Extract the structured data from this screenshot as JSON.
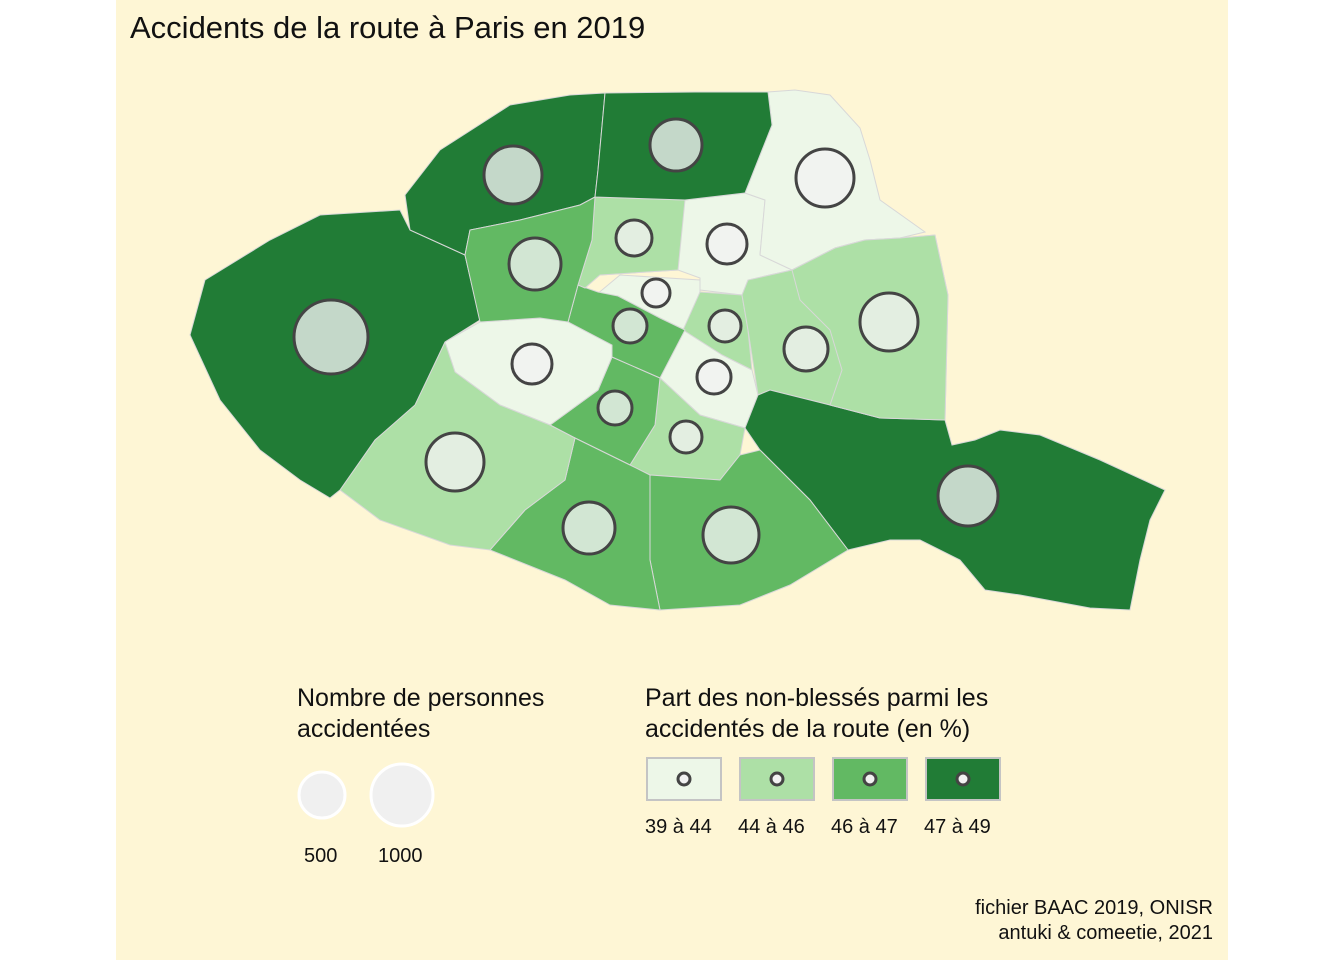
{
  "title": "Accidents de la route à Paris en 2019",
  "colors": {
    "panel_background": "#fef6d5",
    "class_39_44": "#edf7e8",
    "class_44_46": "#ade0a6",
    "class_46_47": "#62b963",
    "class_47_49": "#217c36",
    "bubble_fill": "#f2f2f2",
    "bubble_stroke": "#444444",
    "district_border": "#d8d8d8"
  },
  "size_legend": {
    "title": "Nombre de personnes\n accidentées",
    "items": [
      {
        "value": 500,
        "label": "500"
      },
      {
        "value": 1000,
        "label": "1000"
      }
    ]
  },
  "color_legend": {
    "title": "Part des non-blessés parmi les\naccidentés de la route (en %)",
    "classes": [
      {
        "label": "39 à 44",
        "color": "#edf7e8"
      },
      {
        "label": "44 à 46",
        "color": "#ade0a6"
      },
      {
        "label": "46 à 47",
        "color": "#62b963"
      },
      {
        "label": "47 à 49",
        "color": "#217c36"
      }
    ]
  },
  "districts": [
    {
      "id": "1",
      "class": 0
    },
    {
      "id": "2",
      "class": 0
    },
    {
      "id": "3",
      "class": 1
    },
    {
      "id": "4",
      "class": 0
    },
    {
      "id": "5",
      "class": 1
    },
    {
      "id": "6",
      "class": 2
    },
    {
      "id": "7",
      "class": 0
    },
    {
      "id": "8",
      "class": 2
    },
    {
      "id": "9",
      "class": 1
    },
    {
      "id": "10",
      "class": 0
    },
    {
      "id": "11",
      "class": 1
    },
    {
      "id": "12",
      "class": 3
    },
    {
      "id": "13",
      "class": 2
    },
    {
      "id": "14",
      "class": 2
    },
    {
      "id": "15",
      "class": 1
    },
    {
      "id": "16",
      "class": 3
    },
    {
      "id": "17",
      "class": 3
    },
    {
      "id": "18",
      "class": 3
    },
    {
      "id": "19",
      "class": 2
    },
    {
      "id": "20",
      "class": 1
    }
  ],
  "source": {
    "line1": "fichier BAAC 2019, ONISR",
    "line2": "antuki & comeetie, 2021"
  }
}
